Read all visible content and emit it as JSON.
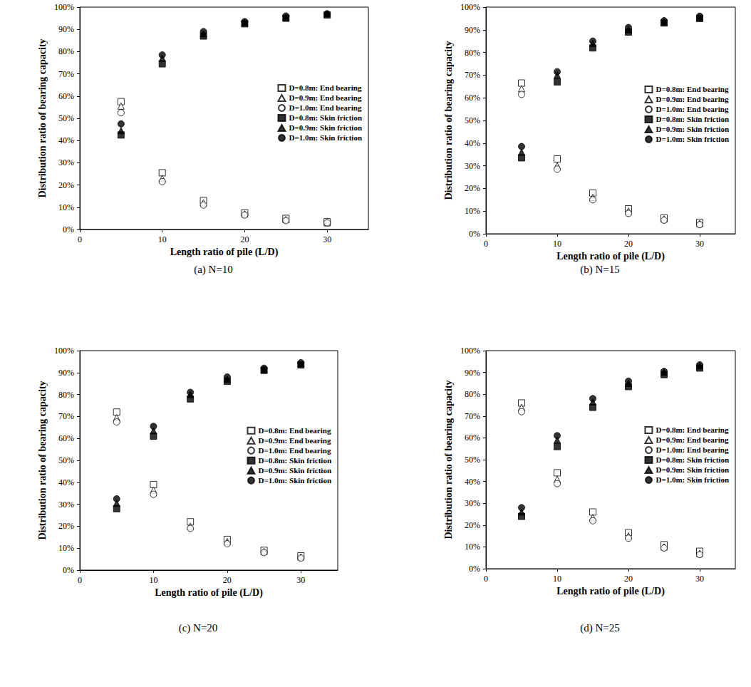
{
  "chart_data": [
    {
      "type": "scatter",
      "title": "(a) N=10",
      "x_label": "Length ratio of pile (L/D)",
      "y_label": "Distribution ratio of bearing capacity",
      "x": [
        5,
        10,
        15,
        20,
        25,
        30
      ],
      "xlim": [
        0,
        35
      ],
      "xticks": [
        0,
        10,
        20,
        30
      ],
      "ylim": [
        0,
        100
      ],
      "yticks": [
        {
          "value": 0,
          "label": "0%"
        },
        {
          "value": 10,
          "label": "10%"
        },
        {
          "value": 20,
          "label": "20%"
        },
        {
          "value": 30,
          "label": "30%"
        },
        {
          "value": 40,
          "label": "40%"
        },
        {
          "value": 50,
          "label": "50%"
        },
        {
          "value": 60,
          "label": "60%"
        },
        {
          "value": 70,
          "label": "70%"
        },
        {
          "value": 80,
          "label": "80%"
        },
        {
          "value": 90,
          "label": "90%"
        },
        {
          "value": 100,
          "label": "100%"
        }
      ],
      "grid": false,
      "legend": "right",
      "series": [
        {
          "name": "D=0.8m: End bearing",
          "color": "#000000",
          "marker": "open_square",
          "values": [
            57.5,
            25.5,
            13,
            7.5,
            5,
            3.5
          ]
        },
        {
          "name": "D=0.9m: End bearing",
          "color": "#000000",
          "marker": "open_triangle",
          "values": [
            55.5,
            23,
            12,
            7,
            4.5,
            3
          ]
        },
        {
          "name": "D=1.0m: End bearing",
          "color": "#000000",
          "marker": "open_circle",
          "values": [
            52.5,
            21.5,
            11,
            6.5,
            4,
            3
          ]
        },
        {
          "name": "D=0.8m: Skin friction",
          "color": "#000000",
          "marker": "square",
          "values": [
            42.5,
            74.5,
            87,
            92.5,
            95,
            96.5
          ]
        },
        {
          "name": "D=0.9m: Skin friction",
          "color": "#000000",
          "marker": "triangle",
          "values": [
            44.5,
            77,
            88,
            93,
            95.5,
            97
          ]
        },
        {
          "name": "D=1.0m: Skin friction",
          "color": "#000000",
          "marker": "circle",
          "values": [
            47.5,
            78.5,
            89,
            93.5,
            96,
            97
          ]
        }
      ]
    },
    {
      "type": "scatter",
      "title": "(b) N=15",
      "x_label": "Length ratio of pile (L/D)",
      "y_label": "Distribution ratio of bearing capacity",
      "x": [
        5,
        10,
        15,
        20,
        25,
        30
      ],
      "xlim": [
        0,
        35
      ],
      "xticks": [
        0,
        10,
        20,
        30
      ],
      "ylim": [
        0,
        100
      ],
      "yticks": [
        {
          "value": 0,
          "label": "0%"
        },
        {
          "value": 10,
          "label": "10%"
        },
        {
          "value": 20,
          "label": "20%"
        },
        {
          "value": 30,
          "label": "30%"
        },
        {
          "value": 40,
          "label": "40%"
        },
        {
          "value": 50,
          "label": "50%"
        },
        {
          "value": 60,
          "label": "60%"
        },
        {
          "value": 70,
          "label": "70%"
        },
        {
          "value": 80,
          "label": "80%"
        },
        {
          "value": 90,
          "label": "90%"
        },
        {
          "value": 100,
          "label": "100%"
        }
      ],
      "grid": false,
      "legend": "right",
      "series": [
        {
          "name": "D=0.8m: End bearing",
          "color": "#000000",
          "marker": "open_square",
          "values": [
            66.5,
            33,
            18,
            11,
            7,
            5
          ]
        },
        {
          "name": "D=0.9m: End bearing",
          "color": "#000000",
          "marker": "open_triangle",
          "values": [
            64,
            30,
            16,
            10,
            6.5,
            4.5
          ]
        },
        {
          "name": "D=1.0m: End bearing",
          "color": "#000000",
          "marker": "open_circle",
          "values": [
            61.5,
            28.5,
            15,
            9,
            6,
            4
          ]
        },
        {
          "name": "D=0.8m: Skin friction",
          "color": "#000000",
          "marker": "square",
          "values": [
            33.5,
            67,
            82,
            89,
            93,
            95
          ]
        },
        {
          "name": "D=0.9m: Skin friction",
          "color": "#000000",
          "marker": "triangle",
          "values": [
            36,
            70,
            84,
            90,
            93.5,
            95.5
          ]
        },
        {
          "name": "D=1.0m: Skin friction",
          "color": "#000000",
          "marker": "circle",
          "values": [
            38.5,
            71.5,
            85,
            91,
            94,
            96
          ]
        }
      ]
    },
    {
      "type": "scatter",
      "title": "(c) N=20",
      "x_label": "Length ratio of pile (L/D)",
      "y_label": "Distribution ratio of bearing capacity",
      "x": [
        5,
        10,
        15,
        20,
        25,
        30
      ],
      "xlim": [
        0,
        35
      ],
      "xticks": [
        0,
        10,
        20,
        30
      ],
      "ylim": [
        0,
        100
      ],
      "yticks": [
        {
          "value": 0,
          "label": "0%"
        },
        {
          "value": 10,
          "label": "10%"
        },
        {
          "value": 20,
          "label": "20%"
        },
        {
          "value": 30,
          "label": "30%"
        },
        {
          "value": 40,
          "label": "40%"
        },
        {
          "value": 50,
          "label": "50%"
        },
        {
          "value": 60,
          "label": "60%"
        },
        {
          "value": 70,
          "label": "70%"
        },
        {
          "value": 80,
          "label": "80%"
        },
        {
          "value": 90,
          "label": "90%"
        },
        {
          "value": 100,
          "label": "100%"
        }
      ],
      "grid": false,
      "legend": "right",
      "series": [
        {
          "name": "D=0.8m: End bearing",
          "color": "#000000",
          "marker": "open_square",
          "values": [
            72,
            39,
            22,
            14,
            9,
            6.5
          ]
        },
        {
          "name": "D=0.9m: End bearing",
          "color": "#000000",
          "marker": "open_triangle",
          "values": [
            69.5,
            36.5,
            20,
            13,
            8.5,
            6
          ]
        },
        {
          "name": "D=1.0m: End bearing",
          "color": "#000000",
          "marker": "open_circle",
          "values": [
            67.5,
            34.5,
            19,
            12,
            8,
            5.5
          ]
        },
        {
          "name": "D=0.8m: Skin friction",
          "color": "#000000",
          "marker": "square",
          "values": [
            28,
            61,
            78,
            86,
            91,
            93.5
          ]
        },
        {
          "name": "D=0.9m: Skin friction",
          "color": "#000000",
          "marker": "triangle",
          "values": [
            30.5,
            63.5,
            80,
            87,
            91.5,
            94
          ]
        },
        {
          "name": "D=1.0m: Skin friction",
          "color": "#000000",
          "marker": "circle",
          "values": [
            32.5,
            65.5,
            81,
            88,
            92,
            94.5
          ]
        }
      ]
    },
    {
      "type": "scatter",
      "title": "(d) N=25",
      "x_label": "Length ratio of pile (L/D)",
      "y_label": "Distribution ratio of bearing capacity",
      "x": [
        5,
        10,
        15,
        20,
        25,
        30
      ],
      "xlim": [
        0,
        35
      ],
      "xticks": [
        0,
        10,
        20,
        30
      ],
      "ylim": [
        0,
        100
      ],
      "yticks": [
        {
          "value": 0,
          "label": "0%"
        },
        {
          "value": 10,
          "label": "10%"
        },
        {
          "value": 20,
          "label": "20%"
        },
        {
          "value": 30,
          "label": "30%"
        },
        {
          "value": 40,
          "label": "40%"
        },
        {
          "value": 50,
          "label": "50%"
        },
        {
          "value": 60,
          "label": "60%"
        },
        {
          "value": 70,
          "label": "70%"
        },
        {
          "value": 80,
          "label": "80%"
        },
        {
          "value": 90,
          "label": "90%"
        },
        {
          "value": 100,
          "label": "100%"
        }
      ],
      "grid": false,
      "legend": "right",
      "series": [
        {
          "name": "D=0.8m: End bearing",
          "color": "#000000",
          "marker": "open_square",
          "values": [
            76,
            44,
            26,
            16.5,
            11,
            8
          ]
        },
        {
          "name": "D=0.9m: End bearing",
          "color": "#000000",
          "marker": "open_triangle",
          "values": [
            74,
            41,
            23.5,
            15,
            10,
            7
          ]
        },
        {
          "name": "D=1.0m: End bearing",
          "color": "#000000",
          "marker": "open_circle",
          "values": [
            72,
            39,
            22,
            14,
            9.5,
            6.5
          ]
        },
        {
          "name": "D=0.8m: Skin friction",
          "color": "#000000",
          "marker": "square",
          "values": [
            24,
            56,
            74,
            83.5,
            89,
            92
          ]
        },
        {
          "name": "D=0.9m: Skin friction",
          "color": "#000000",
          "marker": "triangle",
          "values": [
            26,
            59,
            76.5,
            85,
            90,
            93
          ]
        },
        {
          "name": "D=1.0m: Skin friction",
          "color": "#000000",
          "marker": "circle",
          "values": [
            28,
            61,
            78,
            86,
            90.5,
            93.5
          ]
        }
      ]
    }
  ]
}
